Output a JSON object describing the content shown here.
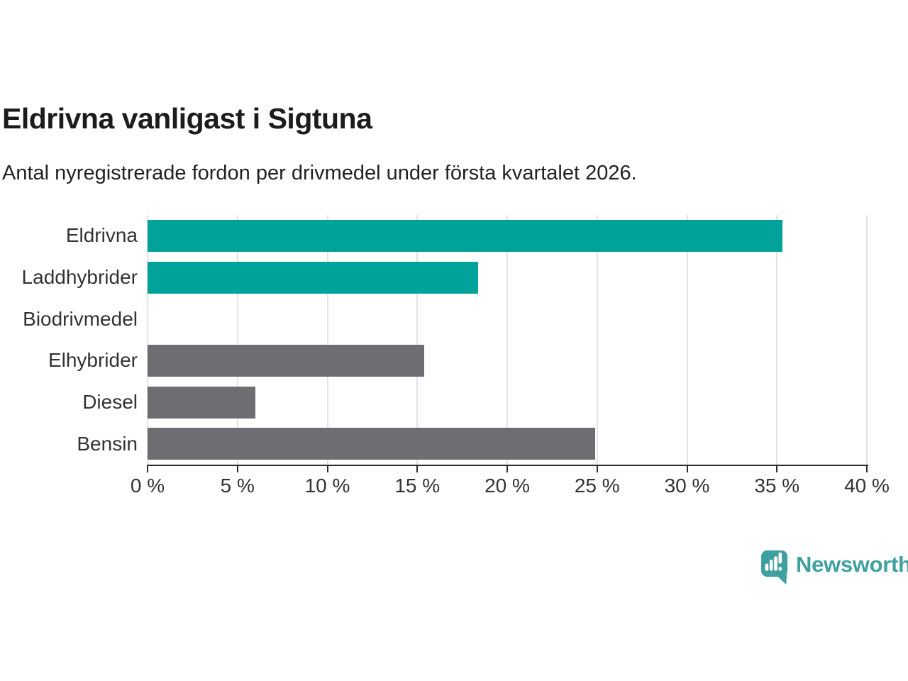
{
  "title": "Eldrivna vanligast i Sigtuna",
  "subtitle": "Antal nyregistrerade fordon per drivmedel under första kvartalet 2026.",
  "branding": {
    "logo_text": "Newsworthy",
    "logo_icon": "newsworthy-speech-bubble-bar-chart-icon",
    "logo_color": "#3fa0a0"
  },
  "colors": {
    "accent_teal": "#00a29a",
    "bar_gray": "#6d6d72",
    "axis": "#2d2d2d",
    "gridline": "#e3e3e3",
    "title_text": "#1c1c1c",
    "label_text": "#333333"
  },
  "chart_data": {
    "type": "bar",
    "orientation": "horizontal",
    "title": "Eldrivna vanligast i Sigtuna",
    "subtitle": "Antal nyregistrerade fordon per drivmedel under första kvartalet 2026.",
    "categories": [
      "Eldrivna",
      "Laddhybrider",
      "Biodrivmedel",
      "Elhybrider",
      "Diesel",
      "Bensin"
    ],
    "values": [
      35.3,
      18.4,
      0,
      15.4,
      6,
      24.9
    ],
    "bar_colors": [
      "#00a29a",
      "#00a29a",
      "#6d6d72",
      "#6d6d72",
      "#6d6d72",
      "#6d6d72"
    ],
    "unit": "%",
    "xlabel": "",
    "ylabel": "",
    "xlim": [
      0,
      40
    ],
    "x_ticks": [
      0,
      5,
      10,
      15,
      20,
      25,
      30,
      35,
      40
    ],
    "x_tick_labels": [
      "0 %",
      "5 %",
      "10 %",
      "15 %",
      "20 %",
      "25 %",
      "30 %",
      "35 %",
      "40 %"
    ],
    "grid": "vertical",
    "legend": "none"
  }
}
